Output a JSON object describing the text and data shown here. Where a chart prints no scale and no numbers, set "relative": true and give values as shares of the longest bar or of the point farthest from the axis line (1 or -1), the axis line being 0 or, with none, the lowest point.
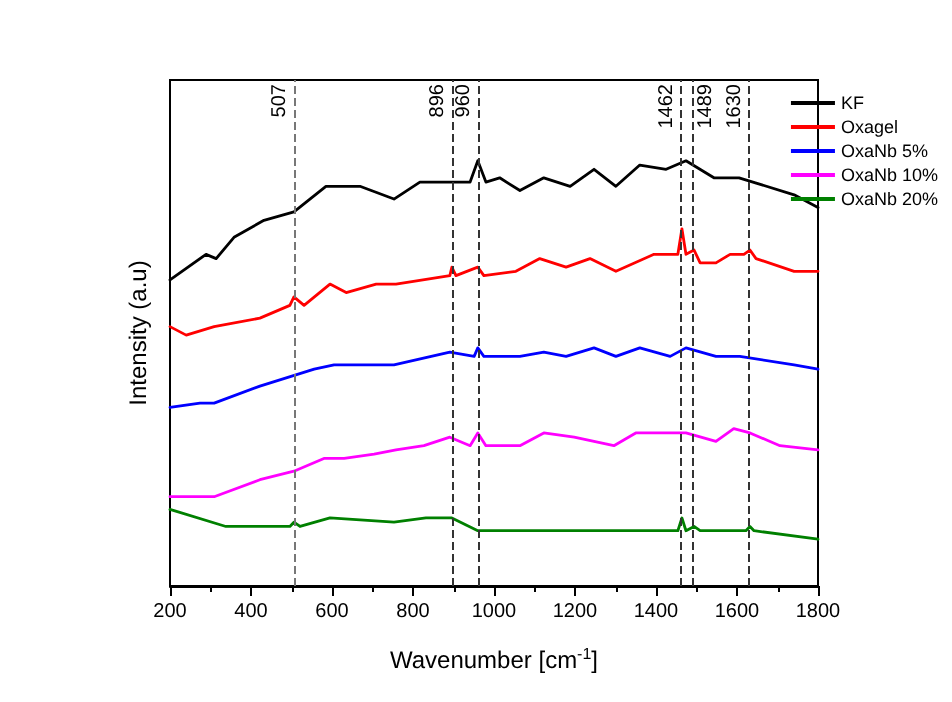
{
  "chart_data": {
    "type": "line",
    "relative": true,
    "xlabel": "Wavenumber [cm$^{-1}$]",
    "ylabel": "Intensity (a.u)",
    "xlim": [
      200,
      1800
    ],
    "xticks": [
      200,
      400,
      600,
      800,
      1000,
      1200,
      1400,
      1600,
      1800
    ],
    "legend": "right",
    "marker": "none",
    "line_style": "solid",
    "series": [
      {
        "name": "KF",
        "color": "#000000",
        "x": [
          200,
          289,
          314,
          358,
          432,
          506,
          585,
          669,
          753,
          817,
          941,
          960,
          980,
          1014,
          1064,
          1123,
          1188,
          1247,
          1301,
          1360,
          1425,
          1474,
          1543,
          1605,
          1741,
          1800
        ],
        "values": [
          0.72,
          0.78,
          0.77,
          0.82,
          0.86,
          0.88,
          0.94,
          0.94,
          0.91,
          0.95,
          0.95,
          1.0,
          0.95,
          0.96,
          0.93,
          0.96,
          0.94,
          0.98,
          0.94,
          0.99,
          0.98,
          1.0,
          0.96,
          0.96,
          0.92,
          0.89
        ]
      },
      {
        "name": "Oxagel",
        "color": "#ff0000",
        "x": [
          200,
          240,
          309,
          422,
          496,
          506,
          531,
          595,
          635,
          709,
          758,
          891,
          896,
          906,
          960,
          975,
          1054,
          1113,
          1178,
          1237,
          1301,
          1395,
          1454,
          1464,
          1474,
          1494,
          1509,
          1548,
          1583,
          1617,
          1632,
          1647,
          1741,
          1800
        ],
        "values": [
          0.61,
          0.59,
          0.61,
          0.63,
          0.66,
          0.68,
          0.66,
          0.71,
          0.69,
          0.71,
          0.71,
          0.73,
          0.75,
          0.73,
          0.75,
          0.73,
          0.74,
          0.77,
          0.75,
          0.77,
          0.74,
          0.78,
          0.78,
          0.84,
          0.78,
          0.79,
          0.76,
          0.76,
          0.78,
          0.78,
          0.79,
          0.77,
          0.74,
          0.74
        ]
      },
      {
        "name": "OxaNb 5%",
        "color": "#0000ff",
        "x": [
          200,
          274,
          309,
          422,
          556,
          605,
          753,
          891,
          951,
          960,
          975,
          1064,
          1123,
          1178,
          1247,
          1301,
          1360,
          1435,
          1474,
          1548,
          1607,
          1741,
          1800
        ],
        "values": [
          0.42,
          0.43,
          0.43,
          0.47,
          0.51,
          0.52,
          0.52,
          0.55,
          0.54,
          0.56,
          0.54,
          0.54,
          0.55,
          0.54,
          0.56,
          0.54,
          0.56,
          0.54,
          0.56,
          0.54,
          0.54,
          0.52,
          0.51
        ]
      },
      {
        "name": "OxaNb 10%",
        "color": "#ff00ff",
        "x": [
          200,
          309,
          422,
          506,
          580,
          630,
          704,
          758,
          827,
          891,
          941,
          960,
          980,
          1064,
          1123,
          1198,
          1296,
          1350,
          1474,
          1548,
          1592,
          1632,
          1706,
          1800
        ],
        "values": [
          0.21,
          0.21,
          0.25,
          0.27,
          0.3,
          0.3,
          0.31,
          0.32,
          0.33,
          0.35,
          0.33,
          0.36,
          0.33,
          0.33,
          0.36,
          0.35,
          0.33,
          0.36,
          0.36,
          0.34,
          0.37,
          0.36,
          0.33,
          0.32
        ]
      },
      {
        "name": "OxaNb 20%",
        "color": "#008000",
        "x": [
          200,
          338,
          496,
          506,
          521,
          595,
          753,
          832,
          896,
          960,
          1163,
          1454,
          1464,
          1474,
          1494,
          1509,
          1622,
          1632,
          1642,
          1800
        ],
        "values": [
          0.18,
          0.14,
          0.14,
          0.15,
          0.14,
          0.16,
          0.15,
          0.16,
          0.16,
          0.13,
          0.13,
          0.13,
          0.16,
          0.13,
          0.14,
          0.13,
          0.13,
          0.14,
          0.13,
          0.11
        ]
      }
    ],
    "ref_lines": [
      {
        "axis": "x",
        "value": 507,
        "label": "507",
        "color": "#777777",
        "line_style": "dashed"
      },
      {
        "axis": "x",
        "value": 896,
        "label": "896",
        "color": "#333333",
        "line_style": "dashed"
      },
      {
        "axis": "x",
        "value": 960,
        "label": "960",
        "color": "#333333",
        "line_style": "dashed"
      },
      {
        "axis": "x",
        "value": 1462,
        "label": "1462",
        "color": "#333333",
        "line_style": "dashed"
      },
      {
        "axis": "x",
        "value": 1489,
        "label": "1489",
        "color": "#333333",
        "line_style": "dashed"
      },
      {
        "axis": "x",
        "value": 1630,
        "label": "1630",
        "color": "#333333",
        "line_style": "dashed"
      }
    ]
  }
}
